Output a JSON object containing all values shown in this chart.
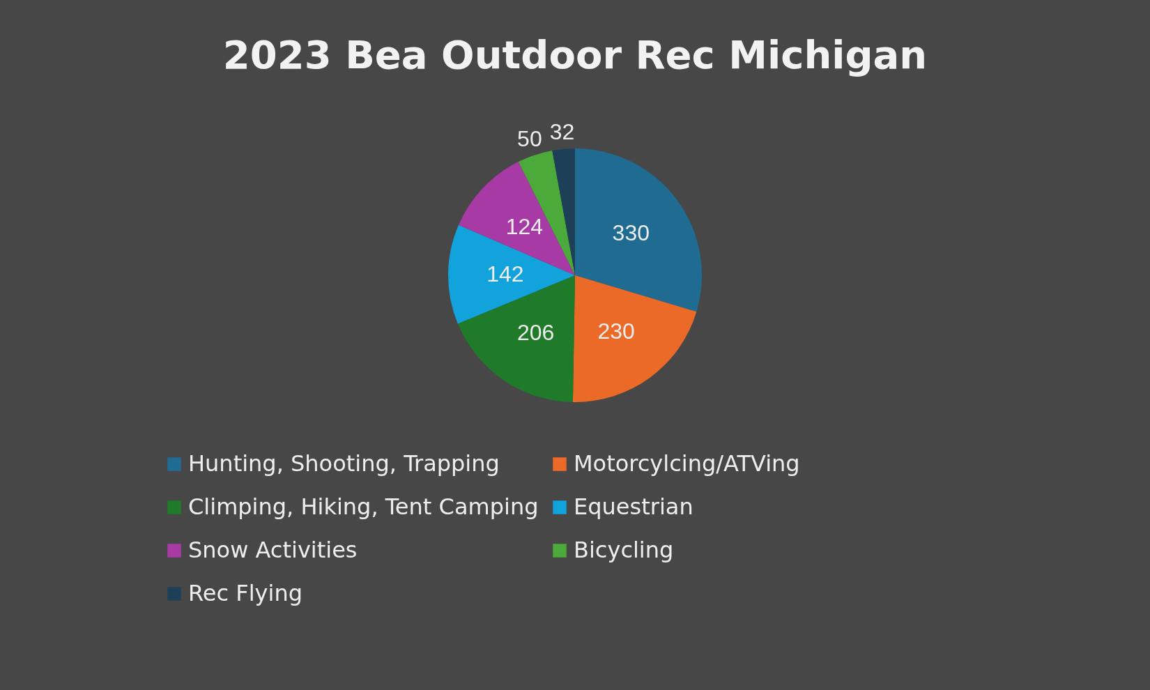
{
  "chart_data": {
    "type": "pie",
    "title": "2023 Bea Outdoor Rec Michigan",
    "categories": [
      "Hunting, Shooting, Trapping",
      "Motorcylcing/ATVing",
      "Climping, Hiking, Tent Camping",
      "Equestrian",
      "Snow Activities",
      "Bicycling",
      "Rec Flying"
    ],
    "values": [
      330,
      230,
      206,
      142,
      124,
      50,
      32
    ],
    "colors": [
      "#1f6b92",
      "#ec6a28",
      "#1f7a2a",
      "#12a2dc",
      "#a83aa5",
      "#4caa3a",
      "#1d4058"
    ],
    "data_labels": true,
    "legend": "bottom"
  }
}
